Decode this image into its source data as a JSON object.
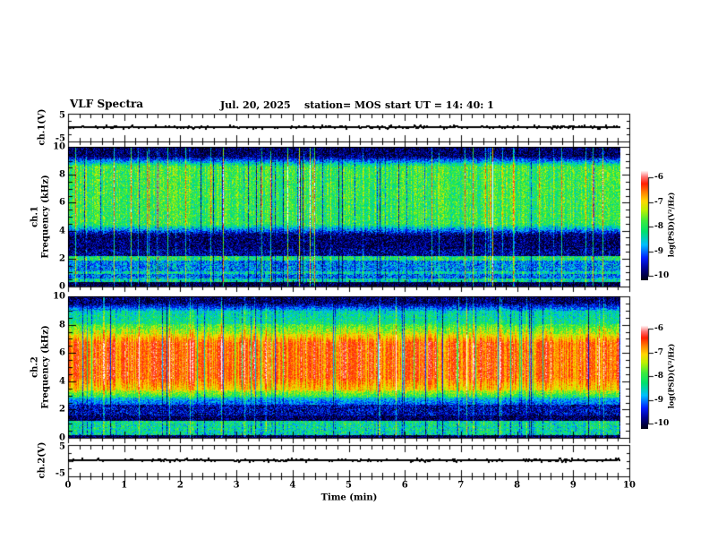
{
  "header": {
    "title": "VLF Spectra",
    "date": "Jul. 20, 2025",
    "station": "station= MOS",
    "start_ut": "start UT =  14: 40: 1"
  },
  "panels": {
    "ch1_trace": {
      "label": "ch.1(V)",
      "yticks": [
        "5",
        "-5"
      ]
    },
    "ch1_spec": {
      "label_line1": "ch.1",
      "label_line2": "Frequency (kHz)",
      "yticks": [
        "10",
        "8",
        "6",
        "4",
        "2",
        "0"
      ]
    },
    "ch2_spec": {
      "label_line1": "ch.2",
      "label_line2": "Frequency (kHz)",
      "yticks": [
        "10",
        "8",
        "6",
        "4",
        "2",
        "0"
      ]
    },
    "ch2_trace": {
      "label": "ch.2(V)",
      "yticks": [
        "5",
        "-5"
      ]
    }
  },
  "xaxis": {
    "label": "Time (min)",
    "ticks": [
      "0",
      "1",
      "2",
      "3",
      "4",
      "5",
      "6",
      "7",
      "8",
      "9",
      "10"
    ]
  },
  "colorbar": {
    "label": "log(PSD)(V²/Hz)",
    "ticks": [
      "-6",
      "-7",
      "-8",
      "-9",
      "-10"
    ],
    "top_color": "#ffffff",
    "bottom_color": "#000019"
  },
  "chart_data": [
    {
      "type": "line",
      "name": "ch1 voltage waveform",
      "ylabel": "ch.1(V)",
      "ylim": [
        -5,
        5
      ],
      "xlim": [
        0,
        10
      ],
      "baseline_v": 0,
      "summary": "flat baseline at 0 V with sparse impulsive spikes under 1 V, data ends near 9.85 min"
    },
    {
      "type": "heatmap",
      "name": "ch1 spectrogram",
      "xlabel": "Time (min)",
      "ylabel": "Frequency (kHz)",
      "xlim": [
        0,
        10
      ],
      "ylim": [
        0,
        10
      ],
      "zlabel": "log(PSD)(V²/Hz)",
      "zlim": [
        -10,
        -6
      ],
      "bands": [
        {
          "freq_khz": [
            9.3,
            10.0
          ],
          "log_psd": -9.8,
          "appearance": "dark with blue/cyan vertical streaks"
        },
        {
          "freq_khz": [
            4.0,
            9.3
          ],
          "log_psd": -8.1,
          "appearance": "bright green-yellow mottle"
        },
        {
          "freq_khz": [
            2.2,
            3.8
          ],
          "log_psd": -9.7,
          "appearance": "dark with blue speckle"
        },
        {
          "freq_khz": [
            1.9,
            2.2
          ],
          "log_psd": -8.3,
          "appearance": "narrow green horizontal line"
        },
        {
          "freq_khz": [
            0.6,
            1.9
          ],
          "log_psd": -8.9,
          "appearance": "cyan/green speckle band"
        },
        {
          "freq_khz": [
            0.35,
            0.6
          ],
          "log_psd": -8.4,
          "appearance": "narrow green horizontal line"
        },
        {
          "freq_khz": [
            0.0,
            0.35
          ],
          "log_psd": -10.0,
          "appearance": "black"
        }
      ],
      "features": "strong vertical striping across all bands; occasional broadband red streaks near -7"
    },
    {
      "type": "heatmap",
      "name": "ch2 spectrogram",
      "xlabel": "Time (min)",
      "ylabel": "Frequency (kHz)",
      "xlim": [
        0,
        10
      ],
      "ylim": [
        0,
        10
      ],
      "zlabel": "log(PSD)(V²/Hz)",
      "zlim": [
        -10,
        -6
      ],
      "bands": [
        {
          "freq_khz": [
            9.5,
            10.0
          ],
          "log_psd": -9.8,
          "appearance": "dark navy with cyan streaks"
        },
        {
          "freq_khz": [
            8.1,
            9.5
          ],
          "log_psd": -8.4,
          "appearance": "green/cyan"
        },
        {
          "freq_khz": [
            7.4,
            8.1
          ],
          "log_psd": -7.6,
          "appearance": "yellow transition"
        },
        {
          "freq_khz": [
            3.4,
            7.4
          ],
          "log_psd": -7.0,
          "appearance": "intense red/orange mottle"
        },
        {
          "freq_khz": [
            2.9,
            3.4
          ],
          "log_psd": -7.8,
          "appearance": "yellow-green transition"
        },
        {
          "freq_khz": [
            2.4,
            2.9
          ],
          "log_psd": -8.6,
          "appearance": "cyan to blue"
        },
        {
          "freq_khz": [
            1.6,
            2.4
          ],
          "log_psd": -9.5,
          "appearance": "dark blue speckle"
        },
        {
          "freq_khz": [
            1.25,
            1.6
          ],
          "log_psd": -10.0,
          "appearance": "black band"
        },
        {
          "freq_khz": [
            0.25,
            1.25
          ],
          "log_psd": -8.4,
          "appearance": "green/cyan speckle band"
        },
        {
          "freq_khz": [
            0.0,
            0.25
          ],
          "log_psd": -10.0,
          "appearance": "black"
        }
      ],
      "features": "vertical brightness striping; dark dropout columns"
    },
    {
      "type": "line",
      "name": "ch2 voltage waveform",
      "ylabel": "ch.2(V)",
      "ylim": [
        -5,
        5
      ],
      "xlim": [
        0,
        10
      ],
      "baseline_v": 0,
      "summary": "flat baseline at 0 V with small impulsive spikes, data ends near 9.85 min"
    }
  ]
}
